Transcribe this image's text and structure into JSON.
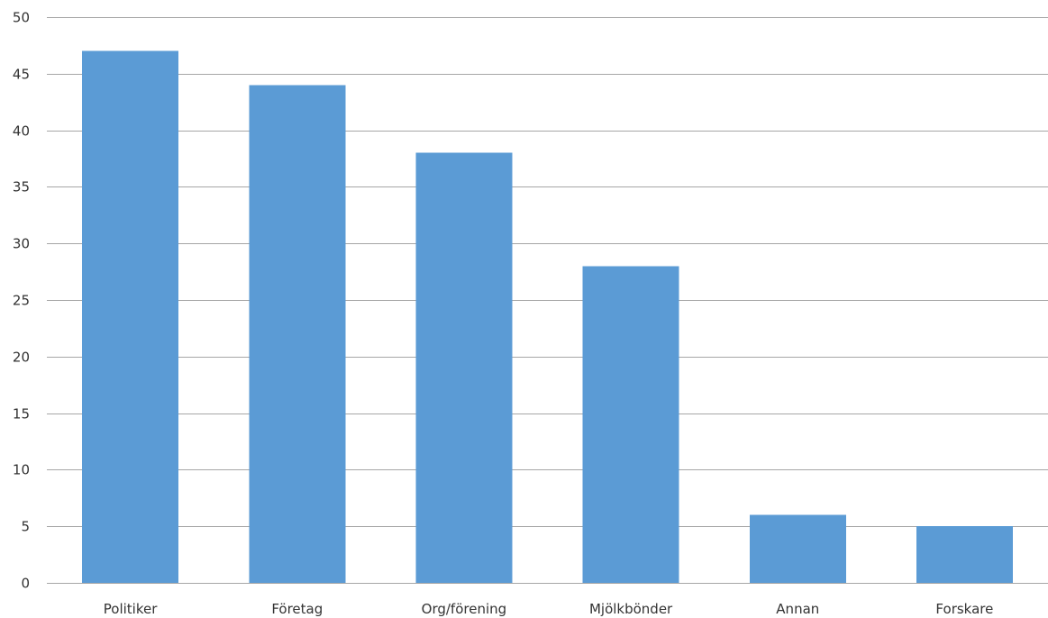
{
  "chart_data": {
    "type": "bar",
    "categories": [
      "Politiker",
      "Företag",
      "Org/förening",
      "Mjölkbönder",
      "Annan",
      "Forskare"
    ],
    "values": [
      47,
      44,
      38,
      28,
      6,
      5
    ],
    "title": "",
    "xlabel": "",
    "ylabel": "",
    "ylim": [
      0,
      50
    ],
    "yticks": [
      "0",
      "5",
      "10",
      "15",
      "20",
      "25",
      "30",
      "35",
      "40",
      "45",
      "50"
    ],
    "grid": true,
    "legend": "none",
    "bar_color": "#5b9bd5",
    "grid_color": "#a6a6a6"
  }
}
